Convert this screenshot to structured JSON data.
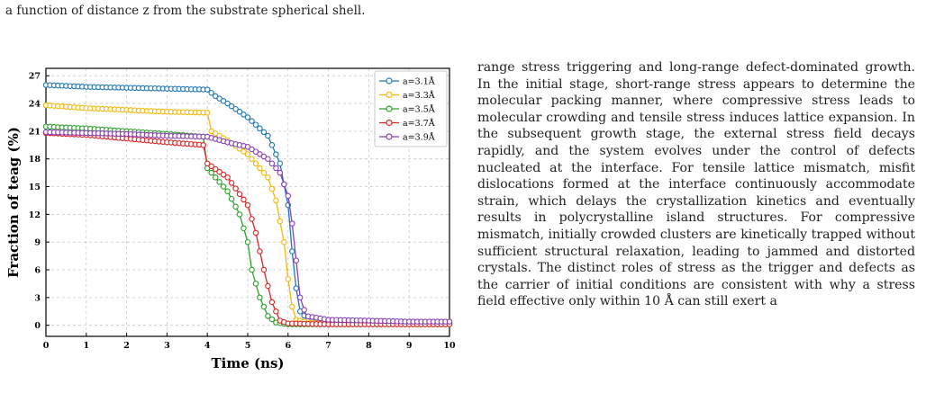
{
  "caption_top": "a function of distance z from the substrate spherical shell.",
  "body_paragraph": "range stress triggering and long-range defect-dominated growth. In the initial stage, short-range stress appears to determine the molecular packing manner, where compressive stress leads to molecular crowding and tensile stress induces lattice expansion. In the subsequent growth stage, the external stress field decays rapidly, and the system evolves under the control of defects nucleated at the interface. For tensile lattice mismatch, misfit dislocations formed at the interface continuously accommodate strain, which delays the crystallization kinetics and eventually results in polycrystalline island structures. For compressive mismatch, initially crowded clusters are kinetically trapped without sufficient structural relaxation, leading to jammed and distorted crystals. The distinct roles of stress as the trigger and defects as the carrier of initial conditions are consistent with why a stress field effective only within 10 Å can still exert a",
  "chart_data": {
    "type": "line",
    "xlabel": "Time (ns)",
    "ylabel": "Fraction of teag (%)",
    "xlim": [
      0,
      10
    ],
    "ylim": [
      -1.2,
      27.8
    ],
    "xticks": [
      0,
      1,
      2,
      3,
      4,
      5,
      6,
      7,
      8,
      9,
      10
    ],
    "yticks": [
      0,
      3,
      6,
      9,
      12,
      15,
      18,
      21,
      24,
      27
    ],
    "grid": true,
    "legend_position": "top-right",
    "series": [
      {
        "name": "a=3.1Å",
        "color": "#1f77b4",
        "points": [
          [
            0,
            26.0
          ],
          [
            1,
            25.8
          ],
          [
            2,
            25.7
          ],
          [
            3,
            25.6
          ],
          [
            4.0,
            25.5
          ],
          [
            4.2,
            24.8
          ],
          [
            4.5,
            24.0
          ],
          [
            5.0,
            22.5
          ],
          [
            5.5,
            20.5
          ],
          [
            5.8,
            17.5
          ],
          [
            6.0,
            13.0
          ],
          [
            6.1,
            8.0
          ],
          [
            6.2,
            4.0
          ],
          [
            6.3,
            1.5
          ],
          [
            6.5,
            0.6
          ],
          [
            7,
            0.5
          ],
          [
            8,
            0.4
          ],
          [
            9,
            0.3
          ],
          [
            10,
            0.3
          ]
        ]
      },
      {
        "name": "a=3.3Å",
        "color": "#f2b90c",
        "points": [
          [
            0,
            23.8
          ],
          [
            1,
            23.5
          ],
          [
            2,
            23.3
          ],
          [
            3,
            23.1
          ],
          [
            4.0,
            23.0
          ],
          [
            4.1,
            21.0
          ],
          [
            4.5,
            20.0
          ],
          [
            5.0,
            18.5
          ],
          [
            5.5,
            16.0
          ],
          [
            5.7,
            13.5
          ],
          [
            5.9,
            9.0
          ],
          [
            6.0,
            5.0
          ],
          [
            6.1,
            2.0
          ],
          [
            6.2,
            0.6
          ],
          [
            6.5,
            0.3
          ],
          [
            7,
            0.2
          ],
          [
            8,
            0.2
          ],
          [
            9,
            0.1
          ],
          [
            10,
            0.1
          ]
        ]
      },
      {
        "name": "a=3.5Å",
        "color": "#2ca02c",
        "points": [
          [
            0,
            21.5
          ],
          [
            1,
            21.3
          ],
          [
            2,
            21.0
          ],
          [
            3,
            20.7
          ],
          [
            3.9,
            20.4
          ],
          [
            4.0,
            17.0
          ],
          [
            4.5,
            14.5
          ],
          [
            4.8,
            12.0
          ],
          [
            5.0,
            9.0
          ],
          [
            5.1,
            6.0
          ],
          [
            5.3,
            3.0
          ],
          [
            5.5,
            1.0
          ],
          [
            5.7,
            0.3
          ],
          [
            6,
            0.1
          ],
          [
            7,
            0.1
          ],
          [
            10,
            0.1
          ]
        ]
      },
      {
        "name": "a=3.7Å",
        "color": "#d62728",
        "points": [
          [
            0,
            20.8
          ],
          [
            1,
            20.6
          ],
          [
            2,
            20.2
          ],
          [
            3,
            19.8
          ],
          [
            3.9,
            19.5
          ],
          [
            4.0,
            17.5
          ],
          [
            4.5,
            16.0
          ],
          [
            5.0,
            13.0
          ],
          [
            5.2,
            10.0
          ],
          [
            5.4,
            6.0
          ],
          [
            5.6,
            2.5
          ],
          [
            5.8,
            0.5
          ],
          [
            6,
            0.2
          ],
          [
            7,
            0.1
          ],
          [
            10,
            0.1
          ]
        ]
      },
      {
        "name": "a=3.9Å",
        "color": "#8a3fb5",
        "points": [
          [
            0,
            20.9
          ],
          [
            1,
            20.8
          ],
          [
            2,
            20.7
          ],
          [
            3,
            20.5
          ],
          [
            4.0,
            20.4
          ],
          [
            4.5,
            19.8
          ],
          [
            5.0,
            19.3
          ],
          [
            5.5,
            18.0
          ],
          [
            5.8,
            16.5
          ],
          [
            6.0,
            14.0
          ],
          [
            6.1,
            11.0
          ],
          [
            6.2,
            7.0
          ],
          [
            6.3,
            3.0
          ],
          [
            6.45,
            1.0
          ],
          [
            7,
            0.6
          ],
          [
            8,
            0.5
          ],
          [
            9,
            0.4
          ],
          [
            10,
            0.4
          ]
        ]
      }
    ]
  }
}
